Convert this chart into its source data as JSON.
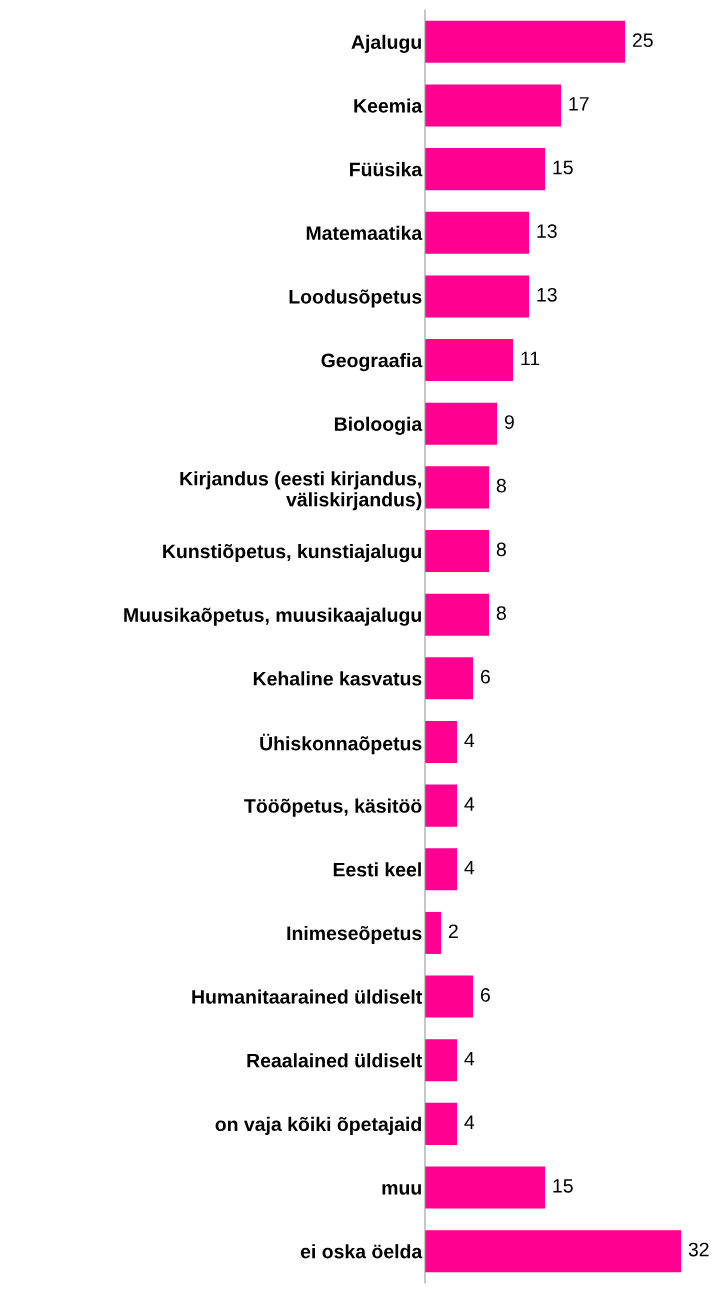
{
  "chart_data": {
    "type": "bar",
    "orientation": "horizontal",
    "data_labels": true,
    "grid": false,
    "legend": false,
    "tick_labels": "y",
    "categories": [
      "Ajalugu",
      "Keemia",
      "Füüsika",
      "Matemaatika",
      "Loodusõpetus",
      "Geograafia",
      "Bioloogia",
      "Kirjandus (eesti kirjandus,\nväliskirjandus)",
      "Kunstiõpetus, kunstiajalugu",
      "Muusikaõpetus, muusikaajalugu",
      "Kehaline kasvatus",
      "Ühiskonnaõpetus",
      "Tööõpetus, käsitöö",
      "Eesti keel",
      "Inimeseõpetus",
      "Humanitaarained üldiselt",
      "Reaalained üldiselt",
      "on vaja kõiki õpetajaid",
      "muu",
      "ei oska öelda"
    ],
    "values": [
      25,
      17,
      15,
      13,
      13,
      11,
      9,
      8,
      8,
      8,
      6,
      4,
      4,
      4,
      2,
      6,
      4,
      4,
      15,
      32
    ],
    "color": "#ff0090"
  }
}
